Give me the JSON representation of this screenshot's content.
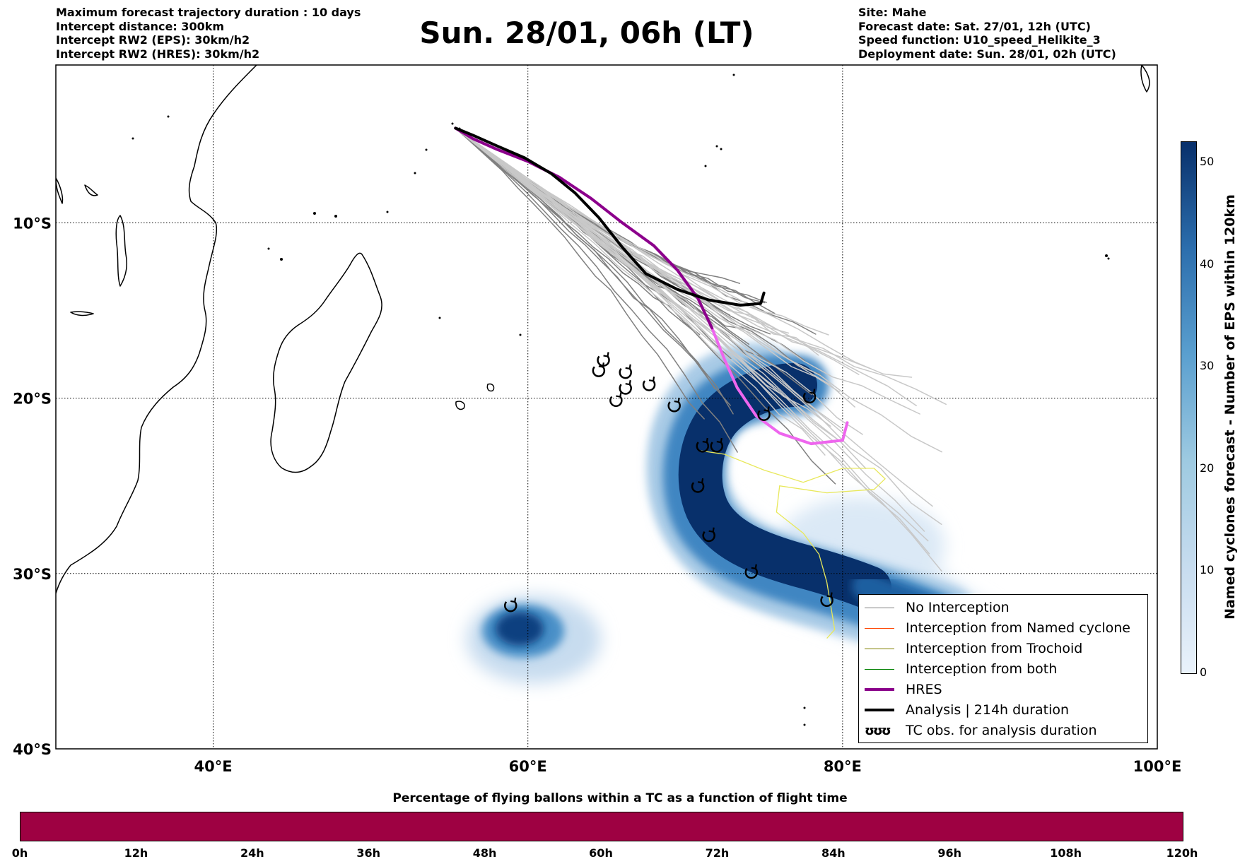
{
  "header_left": [
    "Maximum forecast trajectory duration : 10 days",
    "Intercept distance: 300km",
    "Intercept RW2 (EPS):  30km/h2",
    "Intercept RW2 (HRES): 30km/h2"
  ],
  "title": "Sun. 28/01, 06h (LT)",
  "header_right": [
    "Site: Mahe",
    "Forecast date: Sat. 27/01, 12h (UTC)",
    "Speed function: U10_speed_Helikite_3",
    "Deployment date: Sun. 28/01, 02h (UTC)"
  ],
  "map": {
    "lon_range": [
      30,
      100
    ],
    "lat_range": [
      -40,
      -1
    ],
    "lat_labels": [
      "10°S",
      "20°S",
      "30°S",
      "40°S"
    ],
    "lat_values": [
      -10,
      -20,
      -30,
      -40
    ],
    "lon_labels": [
      "40°E",
      "60°E",
      "80°E",
      "100°E"
    ],
    "lon_values": [
      40,
      60,
      80,
      100
    ],
    "colors": {
      "no_interception": "#808080",
      "ensemble_light": "#c8c8c8",
      "named_cyclone": "#ff4500",
      "trochoid": "#808000",
      "both": "#008000",
      "hres_legend": "#8b008b",
      "hres_track": "#ee66ee",
      "analysis": "#000000",
      "trochoid_track": "#e8e85a"
    },
    "tc_obs_positions": [
      [
        64.5,
        -18.5
      ],
      [
        64.8,
        -17.9
      ],
      [
        66.2,
        -18.6
      ],
      [
        66.2,
        -19.5
      ],
      [
        65.6,
        -20.2
      ],
      [
        67.7,
        -19.3
      ],
      [
        69.3,
        -20.5
      ],
      [
        71.1,
        -22.8
      ],
      [
        72.0,
        -22.8
      ],
      [
        70.8,
        -25.1
      ],
      [
        71.5,
        -27.9
      ],
      [
        74.2,
        -30.0
      ],
      [
        75.0,
        -21.0
      ],
      [
        77.9,
        -20.0
      ],
      [
        79.0,
        -31.6
      ],
      [
        58.9,
        -31.9
      ]
    ],
    "hres_track": [
      [
        55.4,
        -4.6
      ],
      [
        56.5,
        -5.2
      ],
      [
        58.0,
        -5.8
      ],
      [
        60.0,
        -6.5
      ],
      [
        62.0,
        -7.4
      ],
      [
        64.0,
        -8.6
      ],
      [
        66.0,
        -10.0
      ],
      [
        68.0,
        -11.3
      ],
      [
        69.5,
        -12.7
      ],
      [
        70.8,
        -14.3
      ],
      [
        71.7,
        -16.0
      ],
      [
        72.5,
        -17.8
      ],
      [
        73.3,
        -19.4
      ],
      [
        74.5,
        -21.0
      ],
      [
        76.0,
        -22.0
      ],
      [
        78.0,
        -22.6
      ],
      [
        80.0,
        -22.4
      ],
      [
        80.3,
        -21.4
      ]
    ],
    "analysis_track": [
      [
        55.4,
        -4.6
      ],
      [
        56.5,
        -5.0
      ],
      [
        58.0,
        -5.6
      ],
      [
        59.8,
        -6.3
      ],
      [
        61.5,
        -7.2
      ],
      [
        63.0,
        -8.3
      ],
      [
        64.5,
        -9.7
      ],
      [
        66.0,
        -11.4
      ],
      [
        67.5,
        -12.9
      ],
      [
        69.5,
        -13.8
      ],
      [
        71.5,
        -14.4
      ],
      [
        73.5,
        -14.7
      ],
      [
        74.8,
        -14.6
      ],
      [
        75.0,
        -14.0
      ]
    ],
    "trochoid_track": [
      [
        71.0,
        -23.0
      ],
      [
        72.5,
        -23.2
      ],
      [
        75.0,
        -24.1
      ],
      [
        77.5,
        -24.8
      ],
      [
        80.0,
        -24.0
      ],
      [
        82.0,
        -24.0
      ],
      [
        82.7,
        -24.6
      ],
      [
        82.0,
        -25.2
      ],
      [
        79.0,
        -25.4
      ],
      [
        76.0,
        -25.0
      ],
      [
        75.8,
        -26.5
      ],
      [
        77.5,
        -27.7
      ],
      [
        78.5,
        -28.9
      ],
      [
        79.0,
        -30.5
      ],
      [
        79.5,
        -33.2
      ],
      [
        79.0,
        -33.7
      ]
    ]
  },
  "legend": {
    "items": [
      {
        "label": "No Interception",
        "color": "#808080",
        "width": 1.5
      },
      {
        "label": "Interception from Named cyclone",
        "color": "#ff4500",
        "width": 1.5
      },
      {
        "label": "Interception from Trochoid",
        "color": "#808000",
        "width": 1.5
      },
      {
        "label": "Interception from both",
        "color": "#008000",
        "width": 1.5
      },
      {
        "label": "HRES",
        "color": "#8b008b",
        "width": 4
      },
      {
        "label": "Analysis | 214h duration",
        "color": "#000000",
        "width": 4
      }
    ],
    "tc_obs_symbol": "ʊʊʊ",
    "tc_obs_label": "TC obs. for analysis duration"
  },
  "colorbar_vertical": {
    "title": "Named cyclones forecast - Number of EPS within 120km",
    "ticks": [
      "0",
      "10",
      "20",
      "30",
      "40",
      "50"
    ],
    "tick_values": [
      0,
      10,
      20,
      30,
      40,
      50
    ],
    "max": 52
  },
  "colorbar_horizontal": {
    "title": "Percentage of flying ballons within a TC as a function of flight time",
    "ticks": [
      "0h",
      "12h",
      "24h",
      "36h",
      "48h",
      "60h",
      "72h",
      "84h",
      "96h",
      "108h",
      "120h"
    ],
    "color": "#9e0142"
  }
}
